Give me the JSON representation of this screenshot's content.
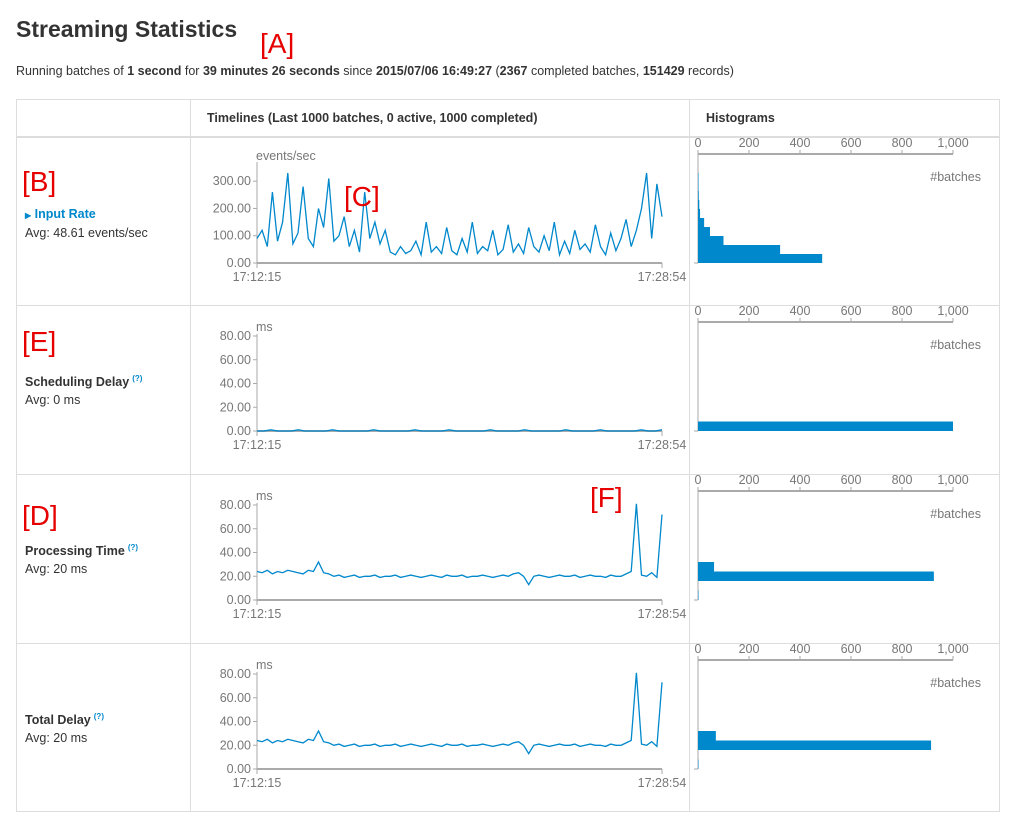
{
  "page": {
    "title": "Streaming Statistics",
    "summary": {
      "t1": "Running batches of ",
      "b1": "1 second",
      "t2": " for ",
      "b2": "39 minutes 26 seconds",
      "t3": " since ",
      "b3": "2015/07/06 16:49:27",
      "t4": " (",
      "b4": "2367",
      "t5": " completed batches, ",
      "b5": "151429",
      "t6": " records)"
    }
  },
  "annotations": {
    "A": "[A]",
    "B": "[B]",
    "C": "[C]",
    "D": "[D]",
    "E": "[E]",
    "F": "[F]"
  },
  "table": {
    "timelines_header": "Timelines (Last 1000 batches, 0 active, 1000 completed)",
    "histograms_header": "Histograms",
    "help_icon": "(?)",
    "rows": [
      {
        "label": "Input Rate",
        "avg": "Avg: 48.61 events/sec"
      },
      {
        "label": "Scheduling Delay",
        "avg": "Avg: 0 ms"
      },
      {
        "label": "Processing Time",
        "avg": "Avg: 20 ms"
      },
      {
        "label": "Total Delay",
        "avg": "Avg: 20 ms"
      }
    ]
  },
  "colors": {
    "series": "#0088cc",
    "axis": "#aaaaaa",
    "annotation": "#e60000"
  },
  "chart_data": [
    {
      "type": "line",
      "unit": "events/sec",
      "ylim": [
        0,
        330
      ],
      "yticks": [
        "0.00",
        "100.00",
        "200.00",
        "300.00"
      ],
      "ytick_values": [
        0,
        100,
        200,
        300
      ],
      "xlabels": [
        "17:12:15",
        "17:28:54"
      ],
      "values": [
        90,
        120,
        60,
        260,
        80,
        150,
        330,
        70,
        110,
        280,
        90,
        60,
        200,
        130,
        310,
        80,
        100,
        170,
        60,
        120,
        40,
        260,
        90,
        150,
        70,
        120,
        40,
        30,
        60,
        35,
        45,
        80,
        30,
        150,
        40,
        60,
        35,
        130,
        45,
        30,
        90,
        40,
        150,
        35,
        60,
        45,
        120,
        30,
        50,
        140,
        40,
        70,
        35,
        130,
        60,
        40,
        100,
        45,
        150,
        30,
        80,
        35,
        120,
        50,
        70,
        40,
        140,
        60,
        30,
        110,
        45,
        90,
        160,
        60,
        120,
        200,
        330,
        90,
        290,
        170
      ],
      "histogram": {
        "xlabel": "#batches",
        "xticks": [
          "0",
          "200",
          "400",
          "600",
          "800",
          "1,000"
        ],
        "xtick_values": [
          0,
          200,
          400,
          600,
          800,
          1000
        ],
        "xlim": [
          0,
          1000
        ],
        "bins": [
          {
            "from": 0,
            "to": 33,
            "count": 487
          },
          {
            "from": 33,
            "to": 66,
            "count": 322
          },
          {
            "from": 66,
            "to": 99,
            "count": 100
          },
          {
            "from": 99,
            "to": 132,
            "count": 47
          },
          {
            "from": 132,
            "to": 165,
            "count": 24
          },
          {
            "from": 165,
            "to": 198,
            "count": 8
          },
          {
            "from": 198,
            "to": 231,
            "count": 5
          },
          {
            "from": 231,
            "to": 264,
            "count": 3
          },
          {
            "from": 264,
            "to": 297,
            "count": 2
          },
          {
            "from": 297,
            "to": 330,
            "count": 2
          }
        ]
      }
    },
    {
      "type": "line",
      "unit": "ms",
      "ylim": [
        0,
        80
      ],
      "yticks": [
        "0.00",
        "20.00",
        "40.00",
        "60.00",
        "80.00"
      ],
      "ytick_values": [
        0,
        20,
        40,
        60,
        80
      ],
      "xlabels": [
        "17:12:15",
        "17:28:54"
      ],
      "values": [
        0,
        0,
        1,
        0,
        0,
        0,
        1,
        0,
        0,
        0,
        0,
        1,
        0,
        0,
        0,
        0,
        0,
        1,
        0,
        0,
        0,
        0,
        0,
        1,
        0,
        0,
        0,
        0,
        1,
        0,
        0,
        0,
        0,
        0,
        1,
        0,
        0,
        0,
        0,
        1,
        0,
        0,
        0,
        0,
        0,
        1,
        0,
        0,
        0,
        0,
        1,
        0,
        0,
        0,
        0,
        0,
        1,
        0,
        0,
        1
      ],
      "histogram": {
        "xlabel": "#batches",
        "xticks": [
          "0",
          "200",
          "400",
          "600",
          "800",
          "1,000"
        ],
        "xtick_values": [
          0,
          200,
          400,
          600,
          800,
          1000
        ],
        "xlim": [
          0,
          1000
        ],
        "bins": [
          {
            "from": 0,
            "to": 8,
            "count": 1000
          }
        ]
      }
    },
    {
      "type": "line",
      "unit": "ms",
      "ylim": [
        0,
        80
      ],
      "yticks": [
        "0.00",
        "20.00",
        "40.00",
        "60.00",
        "80.00"
      ],
      "ytick_values": [
        0,
        20,
        40,
        60,
        80
      ],
      "xlabels": [
        "17:12:15",
        "17:28:54"
      ],
      "values": [
        24,
        23,
        25,
        22,
        24,
        23,
        25,
        24,
        23,
        22,
        25,
        24,
        32,
        23,
        22,
        20,
        21,
        19,
        20,
        21,
        19,
        20,
        20,
        21,
        19,
        20,
        20,
        21,
        19,
        20,
        21,
        20,
        19,
        20,
        21,
        20,
        19,
        21,
        20,
        20,
        21,
        19,
        20,
        20,
        21,
        20,
        19,
        20,
        21,
        20,
        22,
        23,
        20,
        13,
        20,
        21,
        20,
        19,
        20,
        21,
        20,
        20,
        21,
        19,
        20,
        21,
        20,
        20,
        19,
        21,
        20,
        20,
        22,
        24,
        81,
        21,
        20,
        23,
        19,
        72
      ],
      "histogram": {
        "xlabel": "#batches",
        "xticks": [
          "0",
          "200",
          "400",
          "600",
          "800",
          "1,000"
        ],
        "xtick_values": [
          0,
          200,
          400,
          600,
          800,
          1000
        ],
        "xlim": [
          0,
          1000
        ],
        "bins": [
          {
            "from": 0,
            "to": 8,
            "count": 2
          },
          {
            "from": 16,
            "to": 24,
            "count": 925
          },
          {
            "from": 24,
            "to": 32,
            "count": 63
          }
        ]
      }
    },
    {
      "type": "line",
      "unit": "ms",
      "ylim": [
        0,
        80
      ],
      "yticks": [
        "0.00",
        "20.00",
        "40.00",
        "60.00",
        "80.00"
      ],
      "ytick_values": [
        0,
        20,
        40,
        60,
        80
      ],
      "xlabels": [
        "17:12:15",
        "17:28:54"
      ],
      "values": [
        24,
        23,
        25,
        22,
        24,
        23,
        25,
        24,
        23,
        22,
        25,
        24,
        32,
        23,
        22,
        20,
        21,
        19,
        20,
        21,
        19,
        20,
        20,
        21,
        19,
        20,
        20,
        21,
        19,
        20,
        21,
        20,
        19,
        20,
        21,
        20,
        19,
        21,
        20,
        20,
        21,
        19,
        20,
        20,
        21,
        20,
        19,
        20,
        21,
        20,
        22,
        23,
        20,
        13,
        20,
        21,
        20,
        19,
        20,
        21,
        20,
        20,
        21,
        19,
        20,
        21,
        20,
        20,
        19,
        21,
        20,
        20,
        22,
        24,
        81,
        21,
        20,
        23,
        19,
        73
      ],
      "histogram": {
        "xlabel": "#batches",
        "xticks": [
          "0",
          "200",
          "400",
          "600",
          "800",
          "1,000"
        ],
        "xtick_values": [
          0,
          200,
          400,
          600,
          800,
          1000
        ],
        "xlim": [
          0,
          1000
        ],
        "bins": [
          {
            "from": 0,
            "to": 8,
            "count": 2
          },
          {
            "from": 16,
            "to": 24,
            "count": 914
          },
          {
            "from": 24,
            "to": 32,
            "count": 70
          }
        ]
      }
    }
  ]
}
